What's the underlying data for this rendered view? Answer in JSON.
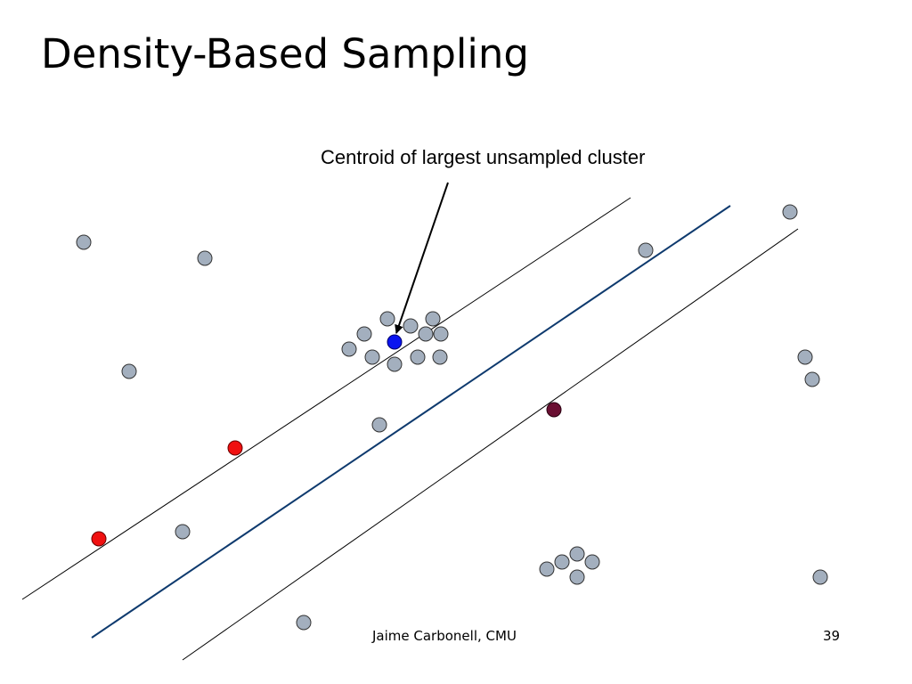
{
  "slide": {
    "title": "Density-Based Sampling",
    "annotation": "Centroid of largest unsampled cluster",
    "footer": {
      "author": "Jaime Carbonell, CMU",
      "page_number": "39"
    }
  },
  "colors": {
    "unlabeled_point": "#a3afbe",
    "selected_centroid": "#0a14f0",
    "positive_label": "#f01010",
    "negative_label": "#6a0f32",
    "decision_boundary": "#0e3a6e",
    "margin_line": "#000000"
  }
}
